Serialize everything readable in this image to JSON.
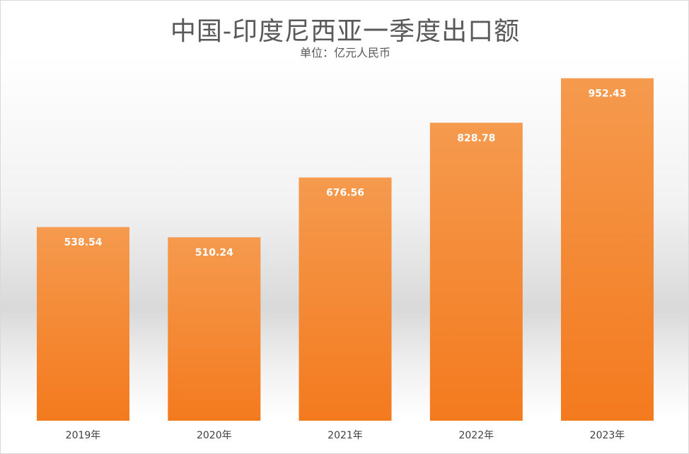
{
  "chart_data": {
    "type": "bar",
    "title": "中国-印度尼西亚一季度出口额",
    "subtitle": "单位：亿元人民币",
    "categories": [
      "2019年",
      "2020年",
      "2021年",
      "2022年",
      "2023年"
    ],
    "values": [
      538.54,
      510.24,
      676.56,
      828.78,
      952.43
    ],
    "value_labels": [
      "538.54",
      "510.24",
      "676.56",
      "828.78",
      "952.43"
    ],
    "ylim": [
      0,
      1050
    ],
    "grid": false,
    "legend": "none",
    "colors": {
      "bar_top": "#f59a4e",
      "bar_bottom": "#f47a1e",
      "label": "#ffffff",
      "text": "#595959"
    }
  }
}
